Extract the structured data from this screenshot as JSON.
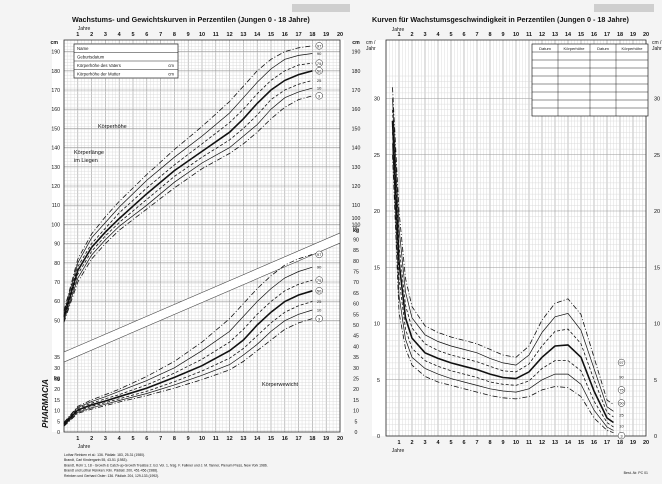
{
  "left": {
    "title": "Wachstums- und Gewichtskurven in Perzentilen (Jungen 0 - 18 Jahre)",
    "years": [
      "1",
      "2",
      "3",
      "4",
      "5",
      "6",
      "7",
      "8",
      "9",
      "10",
      "11",
      "12",
      "13",
      "14",
      "15",
      "16",
      "17",
      "18",
      "19",
      "20"
    ],
    "year_label": "Jahre",
    "cm_unit": "cm",
    "kg_unit": "kg",
    "height_ticks_left": [
      "190",
      "180",
      "170",
      "160",
      "150",
      "140",
      "130",
      "120",
      "110",
      "100",
      "90",
      "80",
      "70",
      "60",
      "50"
    ],
    "height_ticks_right": [
      "190",
      "180",
      "170",
      "160",
      "150",
      "140",
      "130",
      "120",
      "110",
      "100"
    ],
    "weight_ticks_left": [
      "35",
      "30",
      "25",
      "20",
      "15",
      "10",
      "5",
      "0"
    ],
    "weight_ticks_right": [
      "100",
      "95",
      "90",
      "85",
      "80",
      "75",
      "70",
      "65",
      "60",
      "55",
      "50",
      "45",
      "40",
      "35",
      "30",
      "25",
      "20",
      "15",
      "10",
      "5",
      "0"
    ],
    "info_table": [
      {
        "label": "Name",
        "unit": ""
      },
      {
        "label": "Geburtsdatum",
        "unit": ""
      },
      {
        "label": "Körperhöhe des Vaters",
        "unit": "cm"
      },
      {
        "label": "Körperhöhe der Mutter",
        "unit": "cm"
      }
    ],
    "label_height": "Körperhöhe",
    "label_length_1": "Körperlänge",
    "label_length_2": "im Liegen",
    "label_weight": "Körperwewicht",
    "percentile_labels": [
      "97",
      "90",
      "75",
      "50",
      "25",
      "10",
      "3"
    ],
    "brand": "PHARMACIA",
    "footnotes": [
      "Lothar Reinken et al.: 136. Pädiatr. 183, 25-31 (1980).",
      "Brandt, Carl Kindergartn 55, 43-51 (1983).",
      "Brandt, Rohr 1, 18 - Growth & Catch-up-Growth Treatise 2. Ed. Vol. 1, hrsg. F. Falkner und J. M. Tanner, Plenum Press, New York 1986.",
      "Brandt und Lothar Reinken: Klin. Pädiatr. 200, 451-456 (1988).",
      "Reinken und Gerhard Oster: 136. Pädiatr. 204, 129-133 (1992)."
    ]
  },
  "right": {
    "title": "Kurven für Wachstumsgeschwindigkeit in Perzentilen (Jungen 0 - 18 Jahre)",
    "unit_line1": "cm /",
    "unit_line2": "Jahr",
    "year_label": "Jahre",
    "years": [
      "1",
      "2",
      "3",
      "4",
      "5",
      "6",
      "7",
      "8",
      "9",
      "10",
      "11",
      "12",
      "13",
      "14",
      "15",
      "16",
      "17",
      "18",
      "19",
      "20"
    ],
    "y_ticks": [
      "30",
      "25",
      "20",
      "15",
      "10",
      "5",
      "0"
    ],
    "right_ticks": [
      "30",
      "25",
      "20",
      "15",
      "10",
      "5",
      "0"
    ],
    "data_table_headers": [
      "Datum",
      "Körperhöhe",
      "Datum",
      "Körperhöhe"
    ],
    "percentile_labels": [
      "97",
      "90",
      "75",
      "50",
      "25",
      "10",
      "3"
    ],
    "code": "Best.-Nr. PC 01"
  },
  "chart_data": [
    {
      "type": "line",
      "title": "Wachstums- und Gewichtskurven in Perzentilen (Jungen 0 - 18 Jahre)",
      "panel": "height",
      "xlabel": "Jahre",
      "ylabel": "cm",
      "xlim": [
        0,
        20
      ],
      "ylim": [
        45,
        195
      ],
      "x": [
        0,
        1,
        2,
        3,
        4,
        6,
        8,
        10,
        12,
        13,
        14,
        15,
        16,
        17,
        18
      ],
      "series": [
        {
          "name": "97",
          "values": [
            55,
            82,
            95,
            104,
            112,
            126,
            139,
            151,
            164,
            172,
            180,
            186,
            190,
            192,
            193
          ]
        },
        {
          "name": "90",
          "values": [
            54,
            80,
            93,
            101,
            109,
            123,
            135,
            146,
            158,
            166,
            174,
            181,
            186,
            188,
            189
          ]
        },
        {
          "name": "75",
          "values": [
            53,
            78,
            90,
            98,
            106,
            119,
            131,
            142,
            153,
            160,
            168,
            175,
            180,
            183,
            184
          ]
        },
        {
          "name": "50",
          "values": [
            52,
            76,
            88,
            96,
            103,
            116,
            128,
            138,
            148,
            155,
            163,
            170,
            175,
            178,
            180
          ]
        },
        {
          "name": "25",
          "values": [
            51,
            74,
            86,
            94,
            101,
            113,
            125,
            135,
            144,
            150,
            157,
            165,
            170,
            173,
            175
          ]
        },
        {
          "name": "10",
          "values": [
            50,
            72,
            84,
            92,
            99,
            110,
            122,
            132,
            140,
            146,
            152,
            160,
            166,
            169,
            171
          ]
        },
        {
          "name": "3",
          "values": [
            49,
            70,
            82,
            90,
            97,
            108,
            119,
            129,
            137,
            142,
            148,
            155,
            161,
            165,
            167
          ]
        }
      ]
    },
    {
      "type": "line",
      "panel": "weight",
      "xlabel": "Jahre",
      "ylabel": "kg",
      "xlim": [
        0,
        20
      ],
      "ylim": [
        0,
        100
      ],
      "x": [
        0,
        1,
        2,
        3,
        4,
        6,
        8,
        10,
        12,
        13,
        14,
        15,
        16,
        17,
        18
      ],
      "series": [
        {
          "name": "97",
          "values": [
            4.5,
            12,
            15,
            17.5,
            20,
            26,
            33,
            42,
            53,
            60,
            67,
            73,
            78,
            81,
            83
          ]
        },
        {
          "name": "90",
          "values": [
            4.2,
            11.5,
            14.2,
            16.5,
            19,
            24,
            30,
            38,
            47,
            54,
            61,
            67,
            72,
            75,
            77
          ]
        },
        {
          "name": "75",
          "values": [
            3.9,
            11,
            13.5,
            15.5,
            17.5,
            22,
            27.5,
            34,
            42,
            48,
            55,
            61,
            66,
            69,
            71
          ]
        },
        {
          "name": "50",
          "values": [
            3.6,
            10.3,
            12.7,
            14.5,
            16.5,
            20.5,
            25.5,
            31,
            38,
            43,
            50,
            56,
            61,
            64,
            66
          ]
        },
        {
          "name": "25",
          "values": [
            3.3,
            9.7,
            12,
            13.7,
            15.5,
            19,
            23.5,
            28.5,
            34.5,
            39,
            45,
            51,
            56,
            59,
            61
          ]
        },
        {
          "name": "10",
          "values": [
            3,
            9.2,
            11.3,
            13,
            14.7,
            18,
            22,
            26.5,
            31.5,
            36,
            41,
            47,
            52,
            55,
            57
          ]
        },
        {
          "name": "3",
          "values": [
            2.7,
            8.7,
            10.7,
            12.3,
            14,
            17,
            20.5,
            24.5,
            29,
            33,
            38,
            43,
            48,
            51,
            53
          ]
        }
      ]
    },
    {
      "type": "line",
      "title": "Kurven für Wachstumsgeschwindigkeit in Perzentilen (Jungen 0 - 18 Jahre)",
      "panel": "velocity",
      "xlabel": "Jahre",
      "ylabel": "cm / Jahr",
      "xlim": [
        0,
        20
      ],
      "ylim": [
        0,
        32
      ],
      "x": [
        0.5,
        1,
        1.5,
        2,
        3,
        4,
        5,
        6,
        7,
        8,
        9,
        10,
        11,
        12,
        13,
        14,
        15,
        16,
        17,
        17.5
      ],
      "series": [
        {
          "name": "97",
          "values": [
            31,
            20,
            14,
            11.5,
            9.8,
            9.2,
            8.8,
            8.5,
            8.2,
            7.7,
            7.2,
            7.0,
            8.0,
            10.3,
            11.8,
            12.2,
            10.8,
            7.0,
            3.2,
            2.8
          ]
        },
        {
          "name": "90",
          "values": [
            30,
            18.5,
            12.8,
            10.5,
            9.0,
            8.4,
            8.0,
            7.7,
            7.4,
            6.9,
            6.5,
            6.3,
            7.2,
            9.2,
            10.6,
            10.9,
            9.4,
            6.0,
            2.6,
            2.2
          ]
        },
        {
          "name": "75",
          "values": [
            29,
            17,
            11.6,
            9.6,
            8.2,
            7.6,
            7.2,
            6.9,
            6.6,
            6.2,
            5.8,
            5.7,
            6.4,
            8.0,
            9.3,
            9.5,
            8.2,
            5.0,
            2.1,
            1.7
          ]
        },
        {
          "name": "50",
          "values": [
            28,
            15.5,
            10.5,
            8.7,
            7.4,
            6.9,
            6.5,
            6.2,
            5.9,
            5.5,
            5.2,
            5.1,
            5.7,
            7.0,
            8.0,
            8.1,
            7.0,
            4.0,
            1.6,
            1.2
          ]
        },
        {
          "name": "25",
          "values": [
            27,
            14,
            9.5,
            7.8,
            6.7,
            6.2,
            5.8,
            5.5,
            5.2,
            4.8,
            4.6,
            4.5,
            4.9,
            6.0,
            6.7,
            6.7,
            5.8,
            3.1,
            1.2,
            0.8
          ]
        },
        {
          "name": "10",
          "values": [
            26,
            12.5,
            8.6,
            7.0,
            6.0,
            5.5,
            5.1,
            4.8,
            4.5,
            4.2,
            4.0,
            3.9,
            4.2,
            5.0,
            5.5,
            5.5,
            4.6,
            2.3,
            0.8,
            0.5
          ]
        },
        {
          "name": "3",
          "values": [
            25,
            11,
            7.8,
            6.3,
            5.3,
            4.8,
            4.5,
            4.2,
            3.9,
            3.6,
            3.4,
            3.3,
            3.5,
            4.1,
            4.4,
            4.3,
            3.5,
            1.6,
            0.5,
            0.3
          ]
        }
      ]
    }
  ]
}
